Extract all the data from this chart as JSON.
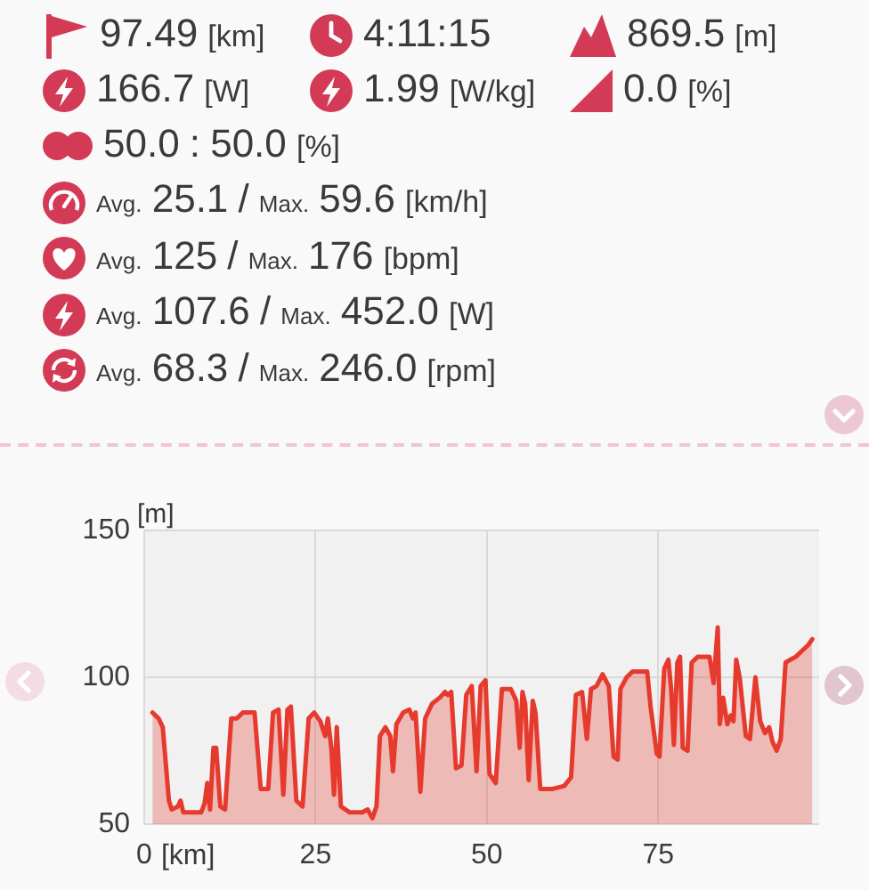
{
  "chart_data": [
    {
      "type": "other",
      "annotations": [
        "97.49 [km]",
        "4:11:15",
        "869.5 [m]",
        "166.7 [W]",
        "1.99 [W/kg]",
        "0.0 [%]",
        "50.0 : 50.0 [%]",
        "Avg. 25.1 / Max. 59.6 [km/h]",
        "Avg. 125 / Max. 176 [bpm]",
        "Avg. 107.6 / Max. 452.0 [W]",
        "Avg. 68.3 / Max. 246.0 [rpm]"
      ]
    },
    {
      "type": "area",
      "xlabel": "[km]",
      "ylabel": "[m]",
      "x": [
        1.2,
        2.1,
        2.7,
        3.6,
        4.0,
        4.9,
        5.3,
        5.7,
        8.3,
        8.8,
        9.2,
        9.6,
        10.1,
        10.5,
        11.1,
        11.8,
        12.7,
        13.5,
        14.4,
        16.1,
        17.0,
        18.1,
        18.8,
        19.6,
        20.3,
        20.9,
        21.4,
        22.2,
        23.1,
        24.0,
        24.8,
        25.7,
        26.4,
        26.8,
        27.3,
        27.7,
        28.1,
        28.7,
        30.0,
        31.8,
        32.6,
        33.3,
        33.9,
        34.4,
        35.2,
        35.9,
        36.3,
        36.8,
        37.8,
        38.7,
        39.2,
        39.6,
        40.3,
        41.0,
        42.0,
        43.1,
        43.9,
        44.3,
        44.8,
        45.5,
        46.3,
        47.0,
        47.8,
        48.5,
        49.1,
        49.8,
        50.4,
        51.3,
        52.2,
        53.5,
        54.3,
        54.8,
        55.2,
        55.6,
        56.1,
        56.7,
        57.1,
        57.8,
        59.6,
        61.3,
        62.3,
        63.0,
        63.9,
        64.6,
        65.2,
        66.0,
        66.9,
        67.8,
        68.5,
        69.1,
        69.5,
        70.4,
        71.3,
        73.4,
        73.9,
        74.8,
        75.2,
        75.9,
        76.5,
        76.9,
        77.3,
        77.8,
        78.2,
        78.6,
        79.3,
        79.9,
        80.8,
        82.5,
        83.1,
        83.7,
        84.0,
        84.5,
        85.1,
        85.6,
        86.0,
        86.4,
        86.9,
        87.8,
        88.4,
        89.2,
        89.9,
        90.6,
        91.2,
        91.7,
        92.3,
        92.9,
        93.6,
        94.3,
        95.1,
        96.0,
        96.9,
        97.5
      ],
      "values": [
        88,
        86,
        83,
        58,
        55,
        56,
        58,
        54,
        54,
        57,
        64,
        55,
        76,
        76,
        56,
        55,
        86,
        86,
        88,
        88,
        62,
        62,
        88,
        89,
        60,
        89,
        90,
        58,
        56,
        86,
        88,
        85,
        80,
        86,
        76,
        60,
        83,
        56,
        54,
        54,
        55,
        52,
        56,
        80,
        83,
        80,
        68,
        84,
        88,
        89,
        86,
        88,
        61,
        86,
        91,
        93,
        95,
        94,
        95,
        69,
        70,
        94,
        97,
        68,
        97,
        99,
        67,
        64,
        96,
        96,
        92,
        76,
        95,
        91,
        65,
        92,
        88,
        62,
        62,
        63,
        66,
        94,
        95,
        79,
        96,
        97,
        101,
        97,
        73,
        72,
        96,
        100,
        102,
        102,
        90,
        74,
        73,
        103,
        106,
        96,
        77,
        105,
        107,
        76,
        75,
        105,
        107,
        107,
        98,
        117,
        84,
        93,
        84,
        87,
        85,
        106,
        100,
        80,
        79,
        100,
        85,
        81,
        83,
        78,
        75,
        79,
        105,
        106,
        107,
        109,
        111,
        113
      ],
      "color": "#e63a2e",
      "xlim": [
        0,
        98.5
      ],
      "xticks": [
        0,
        25,
        50,
        75
      ],
      "ylim": [
        50,
        150
      ],
      "yticks": [
        50,
        100,
        150
      ],
      "grid": true,
      "marker": "none",
      "line_style": "solid"
    }
  ]
}
